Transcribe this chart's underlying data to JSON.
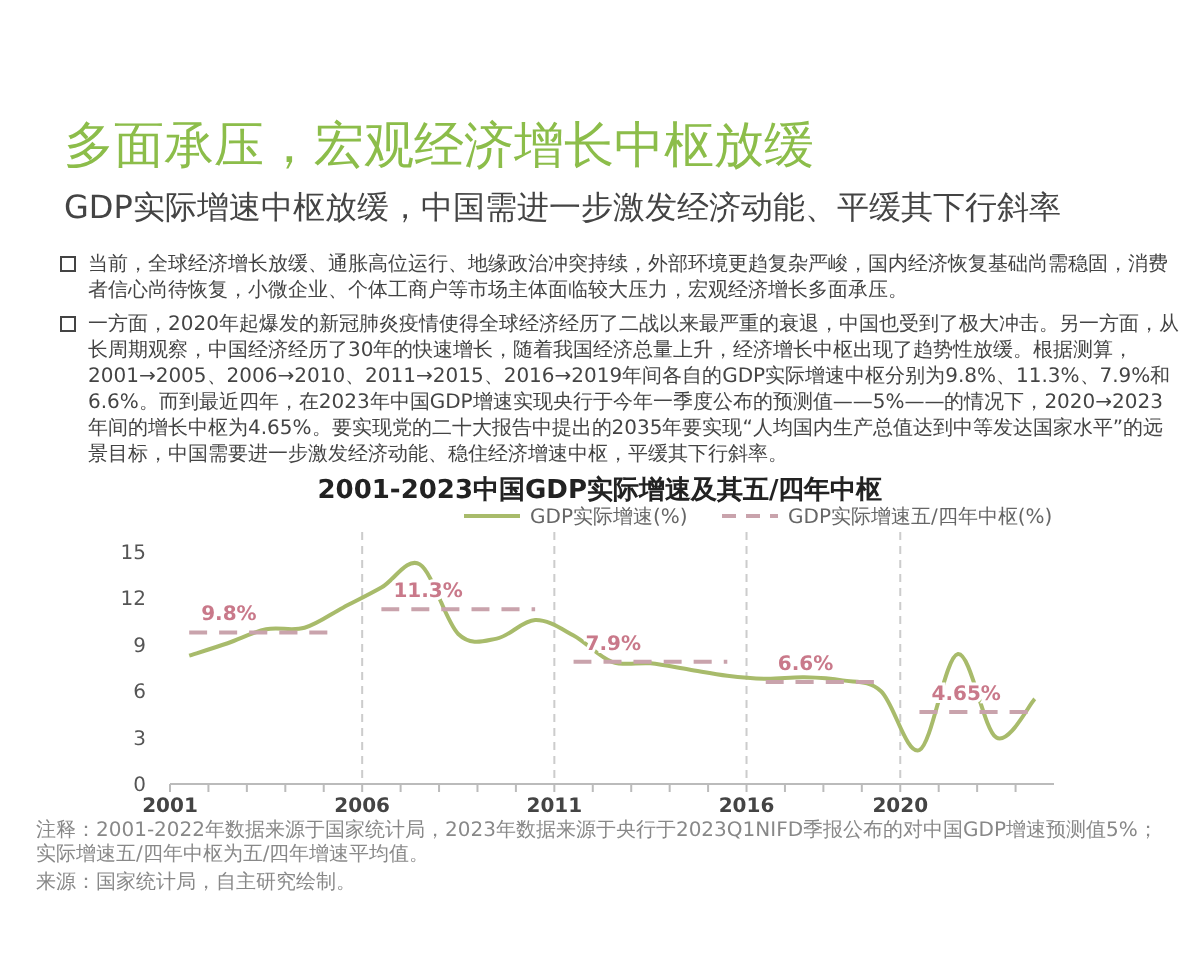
{
  "chart_data": {
    "type": "line",
    "title": "多面承压，宏观经济增长中枢放缓",
    "subtitle": "GDP实际增速中枢放缓，中国需进一步激发经济动能、平缓其下行斜率",
    "annotations": [
      "当前，全球经济增长放缓、通胀高位运行、地缘政治冲突持续，外部环境更趋复杂严峻，国内经济恢复基础尚需稳固，消费者信心尚待恢复，小微企业、个体工商户等市场主体面临较大压力，宏观经济增长多面承压。",
      "一方面，2020年起爆发的新冠肺炎疫情使得全球经济经历了二战以来最严重的衰退，中国也受到了极大冲击。另一方面，从长周期观察，中国经济经历了30年的快速增长，随着我国经济总量上升，经济增长中枢出现了趋势性放缓。根据测算，2001→2005、2006→2010、2011→2015、2016→2019年间各自的GDP实际增速中枢分别为9.8%、11.3%、7.9%和6.6%。而到最近四年，在2023年中国GDP增速实现央行于今年一季度公布的预测值——5%——的情况下，2020→2023年间的增长中枢为4.65%。要实现党的二十大报告中提出的2035年要实现“人均国内生产总值达到中等发达国家水平”的远景目标，中国需要进一步激发经济动能、稳住经济增速中枢，平缓其下行斜率。",
      "2001-2023中国GDP实际增速及其五/四年中枢",
      "注释：2001-2022年数据来源于国家统计局，2023年数据来源于央行于2023Q1NIFD季报公布的对中国GDP增速预测值5%；实际增速五/四年中枢为五/四年增速平均值。",
      "来源：国家统计局，自主研究绘制。"
    ],
    "xlim": [
      2001,
      2024
    ],
    "xticks": [
      2001,
      {
        "value": 2002,
        "label": null
      },
      {
        "value": 2003,
        "label": null
      },
      {
        "value": 2004,
        "label": null
      },
      {
        "value": 2005,
        "label": null
      },
      2006,
      {
        "value": 2007,
        "label": null
      },
      {
        "value": 2008,
        "label": null
      },
      {
        "value": 2009,
        "label": null
      },
      {
        "value": 2010,
        "label": null
      },
      2011,
      {
        "value": 2012,
        "label": null
      },
      {
        "value": 2013,
        "label": null
      },
      {
        "value": 2014,
        "label": null
      },
      {
        "value": 2015,
        "label": null
      },
      2016,
      {
        "value": 2017,
        "label": null
      },
      {
        "value": 2018,
        "label": null
      },
      {
        "value": 2019,
        "label": null
      },
      2020,
      {
        "value": 2021,
        "label": null
      },
      {
        "value": 2022,
        "label": null
      },
      {
        "value": 2023,
        "label": null
      }
    ],
    "ylim": [
      0,
      15
    ],
    "yticks": [
      0,
      3,
      6,
      9,
      12,
      15
    ],
    "grid": false,
    "legend": "top right",
    "ref_lines": [
      {
        "axis": "x",
        "value": 2006,
        "color": "#cccccc",
        "line_style": "dashed"
      },
      {
        "axis": "x",
        "value": 2011,
        "color": "#cccccc",
        "line_style": "dashed"
      },
      {
        "axis": "x",
        "value": 2016,
        "color": "#cccccc",
        "line_style": "dashed"
      },
      {
        "axis": "x",
        "value": 2020,
        "color": "#cccccc",
        "line_style": "dashed"
      }
    ],
    "series": [
      {
        "name": "GDP实际增速(%)",
        "color": "#a8bb6b",
        "line_style": "solid",
        "x": [
          2001.5,
          2002.5,
          2003.5,
          2004.5,
          2005.5,
          2006.5,
          2007.5,
          2008.5,
          2009.5,
          2010.5,
          2011.5,
          2012.5,
          2013.5,
          2014.5,
          2015.5,
          2016.5,
          2017.5,
          2018.5,
          2019.5,
          2020.5,
          2021.5,
          2022.5,
          2023.5
        ],
        "values": [
          8.3,
          9.1,
          10.0,
          10.1,
          11.4,
          12.7,
          14.2,
          9.7,
          9.4,
          10.6,
          9.6,
          7.9,
          7.8,
          7.4,
          7.0,
          6.8,
          6.9,
          6.7,
          6.0,
          2.2,
          8.4,
          3.0,
          5.5
        ]
      },
      {
        "name": "GDP实际增速五/四年中枢(%)",
        "color": "#c9a3ac",
        "line_style": "dashed",
        "x": [
          2001.5,
          2005.2
        ],
        "values": [
          9.8,
          9.8
        ],
        "value_labels": [
          "9.8%",
          null
        ]
      },
      {
        "color": "#c9a3ac",
        "line_style": "dashed",
        "x": [
          2006.5,
          2010.5
        ],
        "values": [
          11.3,
          11.3
        ],
        "value_labels": [
          "11.3%",
          null
        ]
      },
      {
        "color": "#c9a3ac",
        "line_style": "dashed",
        "x": [
          2011.5,
          2015.5
        ],
        "values": [
          7.9,
          7.9
        ],
        "value_labels": [
          "7.9%",
          null
        ]
      },
      {
        "color": "#c9a3ac",
        "line_style": "dashed",
        "x": [
          2016.5,
          2019.5
        ],
        "values": [
          6.6,
          6.6
        ],
        "value_labels": [
          "6.6%",
          null
        ]
      },
      {
        "color": "#c9a3ac",
        "line_style": "dashed",
        "x": [
          2020.5,
          2023.5
        ],
        "values": [
          4.65,
          4.65
        ],
        "value_labels": [
          "4.65%",
          null
        ]
      }
    ]
  }
}
